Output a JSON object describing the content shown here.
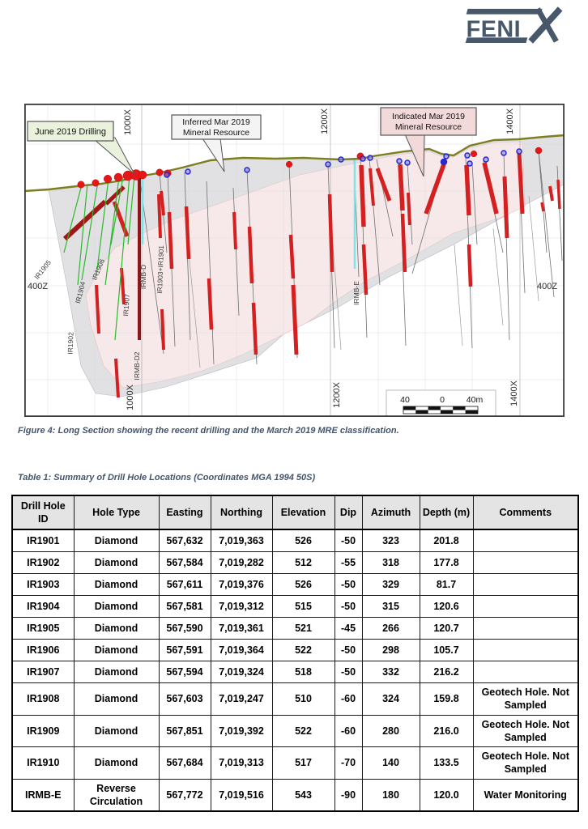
{
  "logo": {
    "text_main": "FENI",
    "text_x": "X",
    "color": "#47586b"
  },
  "figure": {
    "caption": "Figure 4: Long Section showing the recent drilling and the March 2019 MRE classification.",
    "callouts": {
      "june_2019_drilling": "June 2019 Drilling",
      "inferred_line1": "Inferred Mar 2019",
      "inferred_line2": "Mineral Resource",
      "indicated_line1": "Indicated Mar 2019",
      "indicated_line2": "Mineral Resource"
    },
    "axis": {
      "x_ticks": [
        "1000X",
        "1200X",
        "1400X"
      ],
      "z_tick": "400Z"
    },
    "hole_labels": [
      "IR1905",
      "IR1904",
      "IR1906",
      "IR1907",
      "IR1902",
      "IRMB-D",
      "IRMB-D2",
      "IR1903+IR1901",
      "IRMB-E"
    ],
    "scale_bar": {
      "left": "40",
      "middle": "0",
      "right": "40m"
    },
    "colors": {
      "topography": "#7e7e20",
      "intercept_red": "#d42020",
      "june_collar_red": "#e61717",
      "collar_blue": "#2626cf",
      "june_trace_green": "#2db82d",
      "water_bore_cyan": "#7fe3e8",
      "inferred_gray": "#dcdcdf",
      "indicated_pink": "#f8e9e9",
      "june_callout_bg": "#eaf2dd",
      "indicated_callout_bg": "#f2dada"
    }
  },
  "table": {
    "caption": "Table 1: Summary of Drill Hole Locations (Coordinates MGA 1994 50S)",
    "headers": [
      "Drill Hole ID",
      "Hole Type",
      "Easting",
      "Northing",
      "Elevation",
      "Dip",
      "Azimuth",
      "Depth (m)",
      "Comments"
    ],
    "rows": [
      [
        "IR1901",
        "Diamond",
        "567,632",
        "7,019,363",
        "526",
        "-50",
        "323",
        "201.8",
        ""
      ],
      [
        "IR1902",
        "Diamond",
        "567,584",
        "7,019,282",
        "512",
        "-55",
        "318",
        "177.8",
        ""
      ],
      [
        "IR1903",
        "Diamond",
        "567,611",
        "7,019,376",
        "526",
        "-50",
        "329",
        "81.7",
        ""
      ],
      [
        "IR1904",
        "Diamond",
        "567,581",
        "7,019,312",
        "515",
        "-50",
        "315",
        "120.6",
        ""
      ],
      [
        "IR1905",
        "Diamond",
        "567,590",
        "7,019,361",
        "521",
        "-45",
        "266",
        "120.7",
        ""
      ],
      [
        "IR1906",
        "Diamond",
        "567,591",
        "7,019,364",
        "522",
        "-50",
        "298",
        "105.7",
        ""
      ],
      [
        "IR1907",
        "Diamond",
        "567,594",
        "7,019,324",
        "518",
        "-50",
        "332",
        "216.2",
        ""
      ],
      [
        "IR1908",
        "Diamond",
        "567,603",
        "7,019,247",
        "510",
        "-60",
        "324",
        "159.8",
        "Geotech Hole. Not Sampled"
      ],
      [
        "IR1909",
        "Diamond",
        "567,851",
        "7,019,392",
        "522",
        "-60",
        "280",
        "216.0",
        "Geotech Hole. Not Sampled"
      ],
      [
        "IR1910",
        "Diamond",
        "567,684",
        "7,019,313",
        "517",
        "-70",
        "140",
        "133.5",
        "Geotech Hole. Not Sampled"
      ],
      [
        "IRMB-E",
        "Reverse Circulation",
        "567,772",
        "7,019,516",
        "543",
        "-90",
        "180",
        "120.0",
        "Water Monitoring"
      ]
    ]
  }
}
